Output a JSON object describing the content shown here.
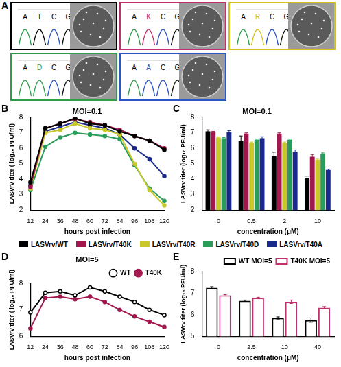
{
  "panel_A": {
    "panel_label": "A",
    "sequences": [
      {
        "bases": [
          "A",
          "T",
          "C",
          "G"
        ],
        "color": "#000000"
      },
      {
        "bases": [
          "A",
          "K",
          "C",
          "G"
        ],
        "color": "#c0306a"
      },
      {
        "bases": [
          "A",
          "R",
          "C",
          "G"
        ],
        "color": "#d4c21a"
      },
      {
        "bases": [
          "A",
          "D",
          "C",
          "G"
        ],
        "color": "#2e9e4a"
      },
      {
        "bases": [
          "A",
          "A",
          "C",
          "G"
        ],
        "color": "#2a56c6"
      }
    ]
  },
  "chart_data": [
    {
      "panel_label": "B",
      "type": "line",
      "title": "MOI=0.1",
      "x_label": "hours post infection",
      "y_label": "LASVrv titer ( log₁₀ PFU/ml)",
      "categories": [
        12,
        24,
        36,
        48,
        60,
        72,
        84,
        96,
        108,
        120
      ],
      "ylim": [
        2,
        8
      ],
      "yticks": [
        2,
        3,
        4,
        5,
        6,
        7,
        8
      ],
      "grid": false,
      "legend": "bottom",
      "series": [
        {
          "name": "LASVrv/WT",
          "color": "#000000",
          "marker": "circle",
          "values": [
            3.8,
            7.3,
            7.6,
            7.95,
            7.6,
            7.5,
            7.1,
            6.8,
            6.5,
            5.9
          ]
        },
        {
          "name": "LASVrv/T40K",
          "color": "#a3174f",
          "marker": "circle",
          "values": [
            3.5,
            7.3,
            7.6,
            7.9,
            7.7,
            7.5,
            7.2,
            6.8,
            6.5,
            6.0
          ]
        },
        {
          "name": "LASVrv/T40R",
          "color": "#c8c82a",
          "marker": "circle",
          "values": [
            3.4,
            7.0,
            7.2,
            7.6,
            7.3,
            7.2,
            6.9,
            5.0,
            3.3,
            2.3
          ]
        },
        {
          "name": "LASVrv/T40D",
          "color": "#2a9d5b",
          "marker": "circle",
          "values": [
            3.3,
            6.1,
            6.7,
            7.0,
            6.9,
            6.8,
            6.6,
            4.9,
            3.4,
            2.6
          ]
        },
        {
          "name": "LASVrv/T40A",
          "color": "#1a2a8a",
          "marker": "circle",
          "values": [
            3.6,
            7.1,
            7.4,
            7.7,
            7.5,
            7.3,
            6.9,
            6.0,
            5.3,
            4.2
          ]
        }
      ]
    },
    {
      "panel_label": "C",
      "type": "bar",
      "title": "MOI=0.1",
      "x_label": "concentration (μM)",
      "y_label": "LASVrv titer (log₁₀ PFU/ml)",
      "categories": [
        0,
        0.5,
        2,
        10
      ],
      "ylim": [
        2,
        8
      ],
      "yticks": [
        2,
        3,
        4,
        5,
        6,
        7,
        8
      ],
      "grid": false,
      "series": [
        {
          "name": "LASVrv/WT",
          "color": "#000000",
          "values": [
            7.1,
            6.5,
            5.5,
            4.1
          ],
          "errors": [
            0.1,
            0.3,
            0.25,
            0.1
          ]
        },
        {
          "name": "LASVrv/T40K",
          "color": "#a3174f",
          "values": [
            7.05,
            6.95,
            6.95,
            5.45
          ],
          "errors": [
            0.05,
            0.05,
            0.05,
            0.15
          ]
        },
        {
          "name": "LASVrv/T40R",
          "color": "#c8c82a",
          "values": [
            6.7,
            6.35,
            6.35,
            5.25
          ],
          "errors": [
            0.05,
            0.05,
            0.05,
            0.05
          ]
        },
        {
          "name": "LASVrv/T40D",
          "color": "#2a9d5b",
          "values": [
            6.65,
            6.55,
            6.55,
            5.65
          ],
          "errors": [
            0.05,
            0.05,
            0.05,
            0.05
          ]
        },
        {
          "name": "LASVrv/T40A",
          "color": "#1a2a8a",
          "values": [
            7.05,
            6.65,
            5.75,
            4.6
          ],
          "errors": [
            0.1,
            0.1,
            0.15,
            0.05
          ]
        }
      ]
    },
    {
      "panel_label": "D",
      "type": "line",
      "title": "MOI=5",
      "x_label": "hours post infection",
      "y_label": "LASVrv titer ( log₁₀ PFU/ml)",
      "categories": [
        12,
        24,
        36,
        48,
        60,
        72,
        84,
        96,
        108,
        120
      ],
      "ylim": [
        6,
        8
      ],
      "yticks": [
        6,
        7,
        8
      ],
      "grid": false,
      "legend": "top-right",
      "series": [
        {
          "name": "WT",
          "color": "#000000",
          "marker": "circle_open",
          "values": [
            6.9,
            7.65,
            7.7,
            7.55,
            7.85,
            7.7,
            7.5,
            7.3,
            7.0,
            6.8
          ]
        },
        {
          "name": "T40K",
          "color": "#a3174f",
          "marker": "circle",
          "values": [
            6.3,
            7.45,
            7.5,
            7.4,
            7.5,
            7.3,
            7.0,
            6.75,
            6.55,
            6.35
          ]
        }
      ]
    },
    {
      "panel_label": "E",
      "type": "bar",
      "x_label": "concentration (μM)",
      "y_label": "LASVrv titer (log₁₀ PFU/ml)",
      "categories": [
        0,
        2.5,
        10,
        40
      ],
      "ylim": [
        5,
        8
      ],
      "yticks": [
        5,
        6,
        7,
        8
      ],
      "grid": false,
      "legend": "top-right",
      "series": [
        {
          "name": "WT MOI=5",
          "color": "#000000",
          "values": [
            7.25,
            6.65,
            5.85,
            5.75
          ],
          "errors": [
            0.05,
            0.03,
            0.05,
            0.1
          ]
        },
        {
          "name": "T40K MOI=5",
          "color": "#c0306a",
          "values": [
            6.9,
            6.78,
            6.6,
            6.33
          ],
          "errors": [
            0.03,
            0.03,
            0.08,
            0.05
          ]
        }
      ]
    }
  ]
}
